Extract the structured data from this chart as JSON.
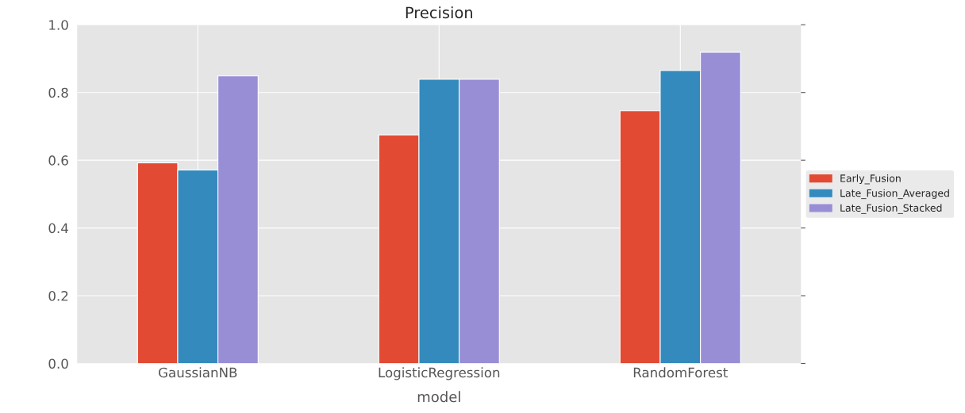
{
  "chart_data": {
    "type": "bar",
    "title": "Precision",
    "xlabel": "model",
    "categories": [
      "GaussianNB",
      "LogisticRegression",
      "RandomForest"
    ],
    "series": [
      {
        "name": "Early_Fusion",
        "color": "#e24a33",
        "values": [
          0.592,
          0.675,
          0.746
        ]
      },
      {
        "name": "Late_Fusion_Averaged",
        "color": "#348abd",
        "values": [
          0.571,
          0.839,
          0.865
        ]
      },
      {
        "name": "Late_Fusion_Stacked",
        "color": "#988ed5",
        "values": [
          0.849,
          0.839,
          0.919
        ]
      }
    ],
    "ylim": [
      0.0,
      1.0
    ],
    "yticks": [
      {
        "value": 0.0,
        "label": "0.0"
      },
      {
        "value": 0.2,
        "label": "0.2"
      },
      {
        "value": 0.4,
        "label": "0.4"
      },
      {
        "value": 0.6,
        "label": "0.6"
      },
      {
        "value": 0.8,
        "label": "0.8"
      },
      {
        "value": 1.0,
        "label": "1.0"
      }
    ],
    "grid": true,
    "legend": "right"
  }
}
